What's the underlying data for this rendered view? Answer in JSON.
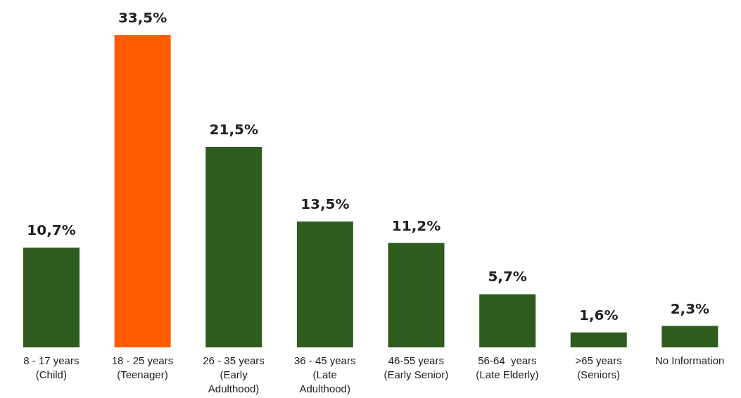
{
  "chart_data": {
    "type": "bar",
    "categories": [
      "8 - 17 years (Child)",
      "18 - 25 years (Teenager)",
      "26 - 35 years (Early Adulthood)",
      "36 - 45 years (Late Adulthood)",
      "46-55 years (Early Senior)",
      "56-64  years (Late Elderly)",
      ">65 years (Seniors)",
      "No Information"
    ],
    "values": [
      10.7,
      33.5,
      21.5,
      13.5,
      11.2,
      5.7,
      1.6,
      2.3
    ],
    "value_labels": [
      "10,7%",
      "33,5%",
      "21,5%",
      "13,5%",
      "11,2%",
      "5,7%",
      "1,6%",
      "2,3%"
    ],
    "colors": [
      "#2e5b1e",
      "#ff5c00",
      "#2e5b1e",
      "#2e5b1e",
      "#2e5b1e",
      "#2e5b1e",
      "#2e5b1e",
      "#2e5b1e"
    ],
    "grid": false,
    "legend": false
  }
}
